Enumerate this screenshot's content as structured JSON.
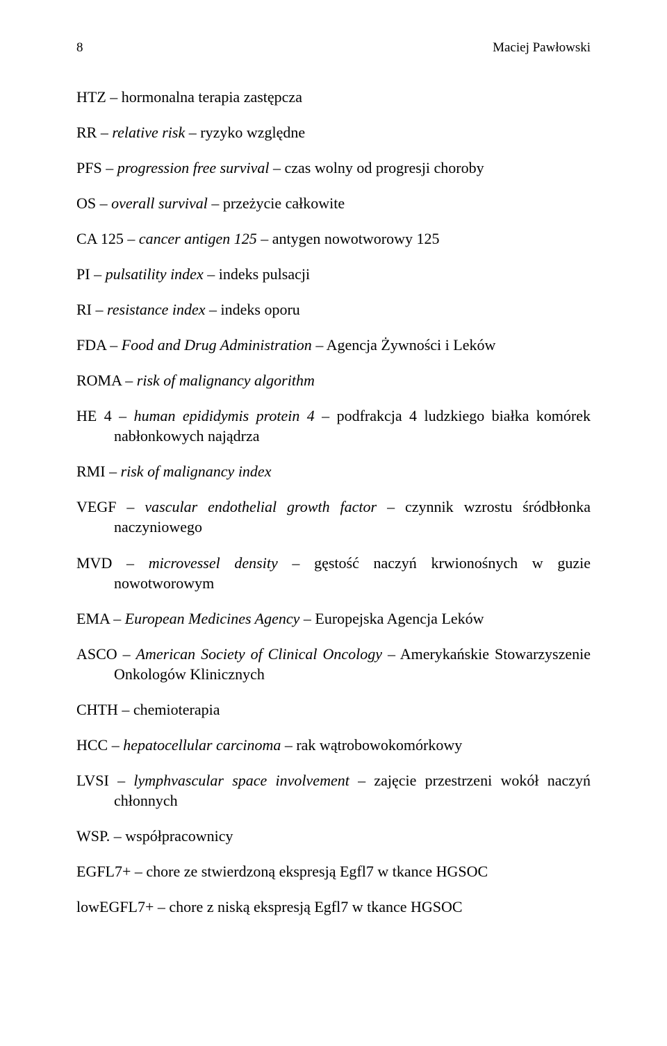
{
  "header": {
    "page_number": "8",
    "author": "Maciej Pawłowski"
  },
  "entries": [
    {
      "abbr": "HTZ",
      "dash": " – ",
      "term_it": "",
      "def": "hormonalna terapia zastępcza"
    },
    {
      "abbr": "RR",
      "dash": " – ",
      "term_it": "relative risk",
      "def": " – ryzyko względne"
    },
    {
      "abbr": "PFS",
      "dash": " – ",
      "term_it": "progression free survival",
      "def": " – czas wolny od progresji choroby"
    },
    {
      "abbr": "OS",
      "dash": " – ",
      "term_it": "overall survival",
      "def": " – przeżycie całkowite"
    },
    {
      "abbr": "CA 125",
      "dash": " – ",
      "term_it": "cancer antigen 125",
      "def": " – antygen nowotworowy 125"
    },
    {
      "abbr": "PI",
      "dash": " – ",
      "term_it": "pulsatility index",
      "def": " – indeks pulsacji"
    },
    {
      "abbr": "RI",
      "dash": " – ",
      "term_it": "resistance index",
      "def": " – indeks oporu"
    },
    {
      "abbr": "FDA",
      "dash": " – ",
      "term_it": "Food and Drug Administration",
      "def": " – Agencja Żywności i Leków"
    },
    {
      "abbr": "ROMA",
      "dash": " – ",
      "term_it": "risk of malignancy algorithm",
      "def": ""
    },
    {
      "abbr": "HE 4",
      "dash": " – ",
      "term_it": "human epididymis protein 4",
      "def": " – podfrakcja 4 ludzkiego białka komórek nabłonkowych najądrza"
    },
    {
      "abbr": "RMI",
      "dash": " – ",
      "term_it": "risk of malignancy index",
      "def": ""
    },
    {
      "abbr": "VEGF",
      "dash": " – ",
      "term_it": "vascular endothelial growth factor",
      "def": " – czynnik wzrostu śródbłonka naczyniowego"
    },
    {
      "abbr": "MVD",
      "dash": " – ",
      "term_it": "microvessel density",
      "def": " – gęstość naczyń krwionośnych w guzie nowotworowym"
    },
    {
      "abbr": "EMA",
      "dash": " – ",
      "term_it": "European Medicines Agency",
      "def": " – Europejska Agencja Leków"
    },
    {
      "abbr": "ASCO",
      "dash": " – ",
      "term_it": "American Society of Clinical Oncology",
      "def": " – Amerykańskie Stowarzyszenie Onkologów Klinicznych"
    },
    {
      "abbr": "CHTH",
      "dash": " – ",
      "term_it": "",
      "def": "chemioterapia"
    },
    {
      "abbr": "HCC",
      "dash": " – ",
      "term_it": "hepatocellular carcinoma",
      "def": " – rak wątrobowokomórkowy"
    },
    {
      "abbr": "LVSI",
      "dash": " – ",
      "term_it": "lymphvascular space involvement",
      "def": " – zajęcie przestrzeni wokół naczyń chłonnych"
    },
    {
      "abbr": "WSP.",
      "dash": " – ",
      "term_it": "",
      "def": "współpracownicy"
    },
    {
      "abbr": "EGFL7+",
      "dash": " – ",
      "term_it": "",
      "def": "chore ze stwierdzoną ekspresją Egfl7 w tkance HGSOC"
    },
    {
      "abbr": "lowEGFL7+",
      "dash": " – ",
      "term_it": "",
      "def": "chore z niską ekspresją Egfl7 w tkance HGSOC"
    }
  ]
}
